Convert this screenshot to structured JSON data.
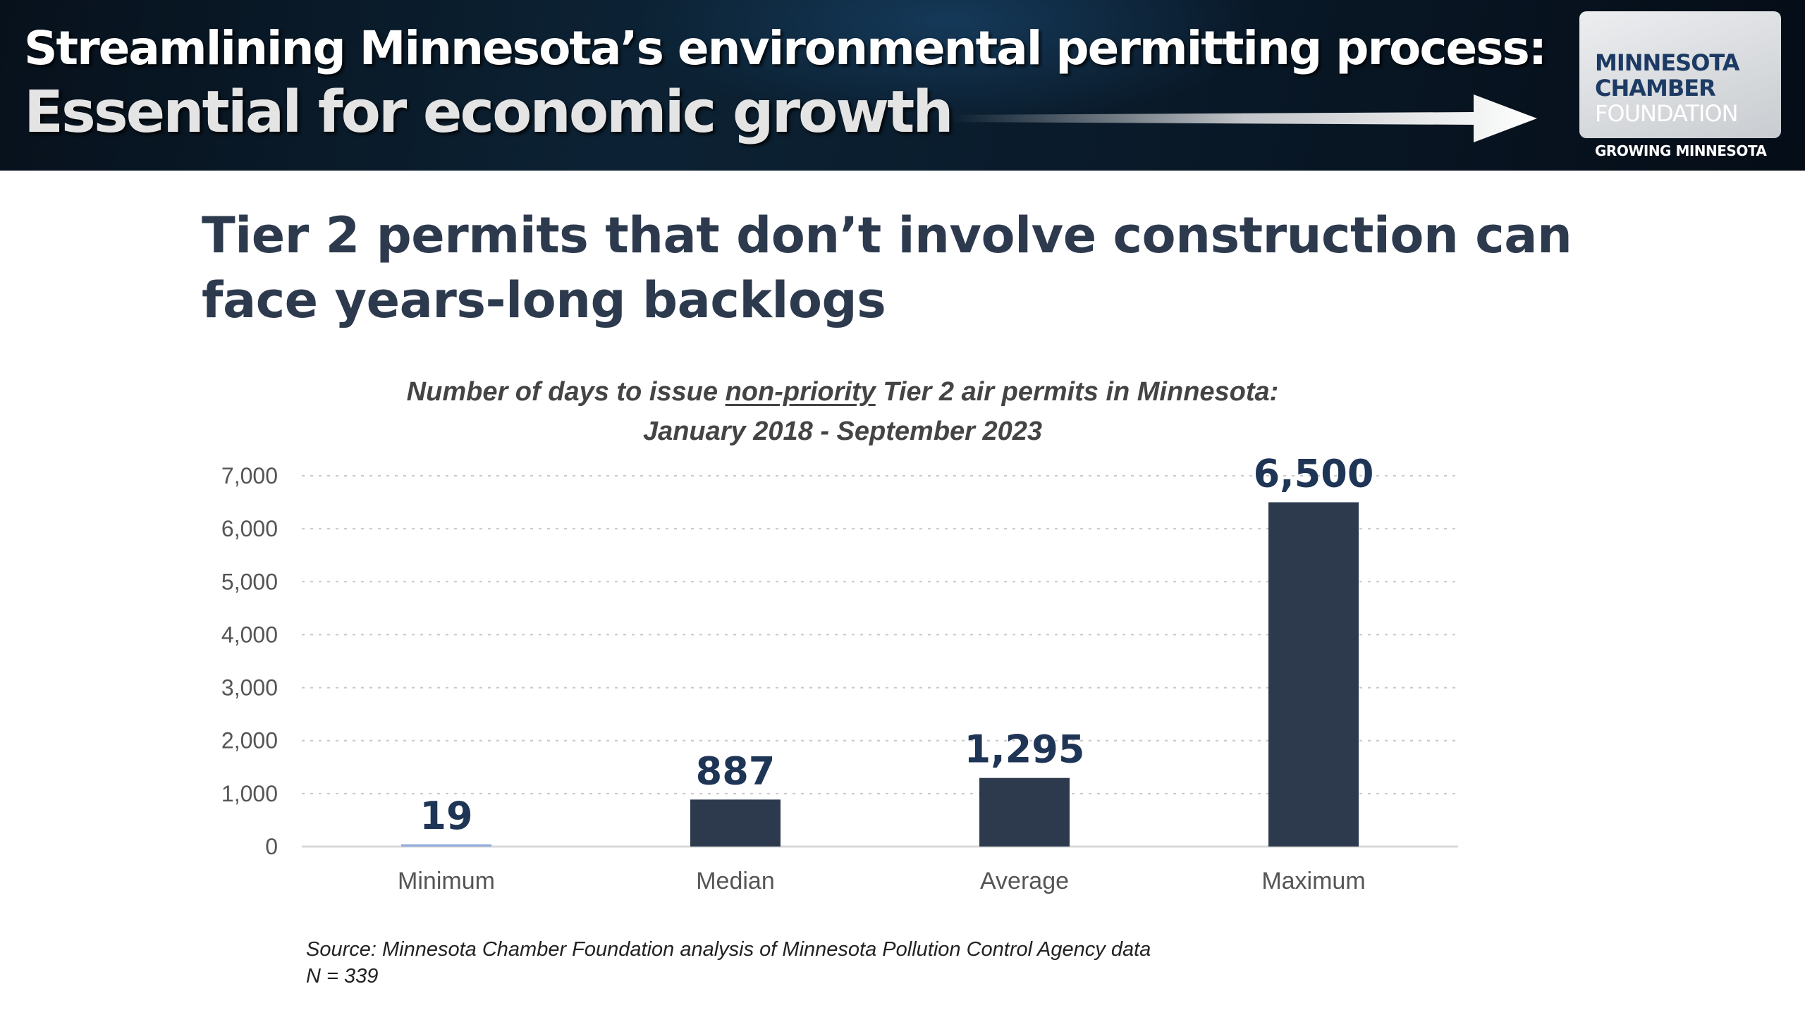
{
  "banner": {
    "title_line1": "Streamlining Minnesota’s environmental permitting process:",
    "title_line2": "Essential for economic growth",
    "logo": {
      "line1": "MINNESOTA",
      "line2": "CHAMBER",
      "line3": "FOUNDATION",
      "tagline": "GROWING MINNESOTA"
    }
  },
  "slide": {
    "heading_line1": "Tier 2 permits that don’t involve construction can",
    "heading_line2": "face years-long backlogs"
  },
  "chart_data": {
    "type": "bar",
    "title_part1": "Number of days to issue ",
    "title_underlined": "non-priority",
    "title_part2": " Tier 2 air permits in Minnesota:",
    "subtitle": "January 2018 - September 2023",
    "categories": [
      "Minimum",
      "Median",
      "Average",
      "Maximum"
    ],
    "values": [
      19,
      887,
      1295,
      6500
    ],
    "data_labels": [
      "19",
      "887",
      "1,295",
      "6,500"
    ],
    "ylim": [
      0,
      7000
    ],
    "yticks": [
      0,
      1000,
      2000,
      3000,
      4000,
      5000,
      6000,
      7000
    ],
    "ytick_labels": [
      "0",
      "1,000",
      "2,000",
      "3,000",
      "4,000",
      "5,000",
      "6,000",
      "7,000"
    ],
    "grid": true,
    "bar_colors": [
      "#8eaadb",
      "#2d3a4e",
      "#2d3a4e",
      "#2d3a4e"
    ],
    "label_color": "#1f3556"
  },
  "source": {
    "line1": "Source: Minnesota Chamber Foundation analysis of Minnesota Pollution Control Agency data",
    "line2": "N = 339"
  }
}
